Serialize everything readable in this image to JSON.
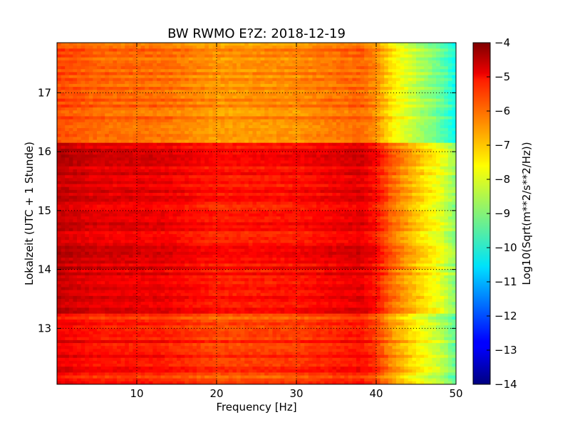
{
  "chart_data": {
    "type": "heatmap",
    "title": "BW RWMO E?Z: 2018-12-19",
    "xlabel": "Frequency [Hz]",
    "ylabel": "Lokalzeit (UTC + 1 Stunde)",
    "xlim": [
      0,
      50
    ],
    "ylim": [
      17.85,
      12.05
    ],
    "x_ticks": [
      10,
      20,
      30,
      40,
      50
    ],
    "y_ticks": [
      13,
      14,
      15,
      16,
      17
    ],
    "grid": true,
    "colormap": "jet",
    "colorbar": {
      "label": "Log10(Sqrt(m**2/s**2/Hz))",
      "range": [
        -14,
        -4
      ],
      "ticks": [
        -4,
        -5,
        -6,
        -7,
        -8,
        -9,
        -10,
        -11,
        -12,
        -13,
        -14
      ]
    },
    "time_segments": [
      {
        "start": 12.05,
        "end": 12.25,
        "base_level": -5.6
      },
      {
        "start": 12.25,
        "end": 13.0,
        "base_level": -5.3
      },
      {
        "start": 13.0,
        "end": 13.25,
        "base_level": -5.6
      },
      {
        "start": 13.25,
        "end": 14.6,
        "base_level": -4.9
      },
      {
        "start": 14.6,
        "end": 15.15,
        "base_level": -5.0
      },
      {
        "start": 15.15,
        "end": 16.15,
        "base_level": -4.9
      },
      {
        "start": 16.15,
        "end": 17.85,
        "base_level": -6.2
      }
    ],
    "spectral_trend": [
      {
        "freq": 0,
        "offset": 0.3
      },
      {
        "freq": 5,
        "offset": 0.0
      },
      {
        "freq": 13,
        "offset": -0.1
      },
      {
        "freq": 20,
        "offset": -0.5
      },
      {
        "freq": 30,
        "offset": -0.4
      },
      {
        "freq": 38,
        "offset": 0.0
      },
      {
        "freq": 40,
        "offset": -0.4
      },
      {
        "freq": 42,
        "offset": -1.3
      },
      {
        "freq": 45,
        "offset": -2.2
      },
      {
        "freq": 48,
        "offset": -3.0
      },
      {
        "freq": 50,
        "offset": -3.9
      }
    ]
  }
}
